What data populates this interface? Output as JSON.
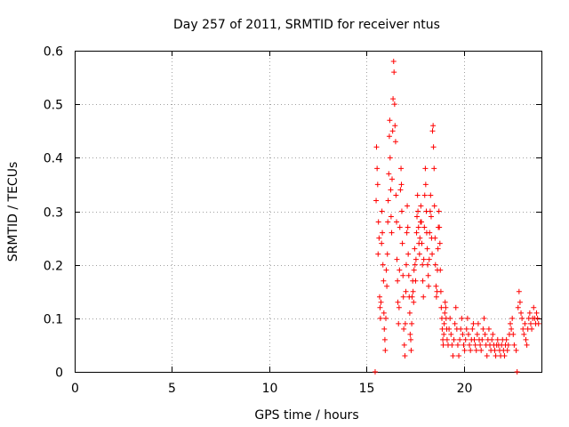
{
  "chart_data": {
    "type": "scatter",
    "title": "Day 257 of 2011, SRMTID for receiver ntus",
    "xlabel": "GPS time / hours",
    "ylabel": "SRMTID / TECUs",
    "xlim": [
      0,
      24
    ],
    "ylim": [
      0,
      0.6
    ],
    "xticks": [
      0,
      5,
      10,
      15,
      20
    ],
    "yticks": [
      0,
      0.1,
      0.2,
      0.3,
      0.4,
      0.5,
      0.6
    ],
    "xtick_labels": [
      "0",
      "5",
      "10",
      "15",
      "20"
    ],
    "ytick_labels": [
      "0",
      "0.1",
      "0.2",
      "0.3",
      "0.4",
      "0.5",
      "0.6"
    ],
    "grid": true,
    "marker": "+",
    "series": [
      {
        "name": "SRMTID",
        "color": "#ff0000",
        "points": [
          [
            15.45,
            0.0
          ],
          [
            15.5,
            0.32
          ],
          [
            15.52,
            0.42
          ],
          [
            15.55,
            0.38
          ],
          [
            15.58,
            0.35
          ],
          [
            15.6,
            0.22
          ],
          [
            15.62,
            0.28
          ],
          [
            15.65,
            0.25
          ],
          [
            15.68,
            0.14
          ],
          [
            15.7,
            0.12
          ],
          [
            15.72,
            0.1
          ],
          [
            15.75,
            0.13
          ],
          [
            15.78,
            0.24
          ],
          [
            15.8,
            0.3
          ],
          [
            15.82,
            0.26
          ],
          [
            15.85,
            0.2
          ],
          [
            15.88,
            0.17
          ],
          [
            15.9,
            0.11
          ],
          [
            15.92,
            0.08
          ],
          [
            15.95,
            0.06
          ],
          [
            15.97,
            0.04
          ],
          [
            16.0,
            0.1
          ],
          [
            16.02,
            0.19
          ],
          [
            16.05,
            0.16
          ],
          [
            16.08,
            0.22
          ],
          [
            16.1,
            0.28
          ],
          [
            16.12,
            0.32
          ],
          [
            16.15,
            0.37
          ],
          [
            16.18,
            0.44
          ],
          [
            16.2,
            0.47
          ],
          [
            16.22,
            0.4
          ],
          [
            16.25,
            0.34
          ],
          [
            16.27,
            0.29
          ],
          [
            16.3,
            0.26
          ],
          [
            16.32,
            0.36
          ],
          [
            16.35,
            0.45
          ],
          [
            16.37,
            0.51
          ],
          [
            16.4,
            0.58
          ],
          [
            16.42,
            0.56
          ],
          [
            16.45,
            0.5
          ],
          [
            16.47,
            0.46
          ],
          [
            16.5,
            0.43
          ],
          [
            16.52,
            0.33
          ],
          [
            16.55,
            0.28
          ],
          [
            16.57,
            0.21
          ],
          [
            16.6,
            0.17
          ],
          [
            16.62,
            0.13
          ],
          [
            16.65,
            0.09
          ],
          [
            16.68,
            0.12
          ],
          [
            16.7,
            0.19
          ],
          [
            16.72,
            0.27
          ],
          [
            16.75,
            0.34
          ],
          [
            16.78,
            0.38
          ],
          [
            16.8,
            0.35
          ],
          [
            16.82,
            0.3
          ],
          [
            16.85,
            0.24
          ],
          [
            16.88,
            0.18
          ],
          [
            16.9,
            0.14
          ],
          [
            16.92,
            0.08
          ],
          [
            16.95,
            0.05
          ],
          [
            16.98,
            0.03
          ],
          [
            17.0,
            0.09
          ],
          [
            17.03,
            0.15
          ],
          [
            17.05,
            0.2
          ],
          [
            17.08,
            0.26
          ],
          [
            17.1,
            0.31
          ],
          [
            17.13,
            0.27
          ],
          [
            17.15,
            0.22
          ],
          [
            17.18,
            0.18
          ],
          [
            17.2,
            0.14
          ],
          [
            17.23,
            0.11
          ],
          [
            17.25,
            0.07
          ],
          [
            17.28,
            0.06
          ],
          [
            17.3,
            0.04
          ],
          [
            17.33,
            0.09
          ],
          [
            17.35,
            0.14
          ],
          [
            17.38,
            0.17
          ],
          [
            17.4,
            0.15
          ],
          [
            17.43,
            0.13
          ],
          [
            17.45,
            0.19
          ],
          [
            17.48,
            0.23
          ],
          [
            17.5,
            0.2
          ],
          [
            17.53,
            0.17
          ],
          [
            17.55,
            0.21
          ],
          [
            17.58,
            0.26
          ],
          [
            17.6,
            0.29
          ],
          [
            17.63,
            0.33
          ],
          [
            17.65,
            0.3
          ],
          [
            17.68,
            0.27
          ],
          [
            17.7,
            0.24
          ],
          [
            17.73,
            0.22
          ],
          [
            17.75,
            0.25
          ],
          [
            17.78,
            0.28
          ],
          [
            17.8,
            0.31
          ],
          [
            17.83,
            0.28
          ],
          [
            17.85,
            0.24
          ],
          [
            17.88,
            0.2
          ],
          [
            17.9,
            0.17
          ],
          [
            17.93,
            0.14
          ],
          [
            17.95,
            0.21
          ],
          [
            17.98,
            0.27
          ],
          [
            18.0,
            0.33
          ],
          [
            18.03,
            0.38
          ],
          [
            18.05,
            0.35
          ],
          [
            18.08,
            0.3
          ],
          [
            18.1,
            0.26
          ],
          [
            18.13,
            0.23
          ],
          [
            18.15,
            0.2
          ],
          [
            18.18,
            0.18
          ],
          [
            18.2,
            0.16
          ],
          [
            18.23,
            0.21
          ],
          [
            18.25,
            0.26
          ],
          [
            18.28,
            0.3
          ],
          [
            18.3,
            0.33
          ],
          [
            18.33,
            0.29
          ],
          [
            18.35,
            0.25
          ],
          [
            18.38,
            0.22
          ],
          [
            18.4,
            0.45
          ],
          [
            18.43,
            0.46
          ],
          [
            18.45,
            0.42
          ],
          [
            18.48,
            0.38
          ],
          [
            18.5,
            0.31
          ],
          [
            18.53,
            0.25
          ],
          [
            18.55,
            0.2
          ],
          [
            18.58,
            0.16
          ],
          [
            18.6,
            0.14
          ],
          [
            18.63,
            0.15
          ],
          [
            18.65,
            0.19
          ],
          [
            18.68,
            0.23
          ],
          [
            18.7,
            0.27
          ],
          [
            18.73,
            0.3
          ],
          [
            18.75,
            0.27
          ],
          [
            18.78,
            0.24
          ],
          [
            18.8,
            0.19
          ],
          [
            18.83,
            0.15
          ],
          [
            18.85,
            0.12
          ],
          [
            18.88,
            0.1
          ],
          [
            18.9,
            0.08
          ],
          [
            18.93,
            0.06
          ],
          [
            18.95,
            0.05
          ],
          [
            18.98,
            0.07
          ],
          [
            19.0,
            0.09
          ],
          [
            19.03,
            0.11
          ],
          [
            19.05,
            0.13
          ],
          [
            19.08,
            0.12
          ],
          [
            19.1,
            0.1
          ],
          [
            19.13,
            0.08
          ],
          [
            19.15,
            0.06
          ],
          [
            19.2,
            0.05
          ],
          [
            19.25,
            0.08
          ],
          [
            19.3,
            0.1
          ],
          [
            19.35,
            0.07
          ],
          [
            19.4,
            0.05
          ],
          [
            19.45,
            0.03
          ],
          [
            19.5,
            0.06
          ],
          [
            19.55,
            0.09
          ],
          [
            19.6,
            0.12
          ],
          [
            19.65,
            0.08
          ],
          [
            19.7,
            0.05
          ],
          [
            19.75,
            0.03
          ],
          [
            19.8,
            0.06
          ],
          [
            19.85,
            0.08
          ],
          [
            19.9,
            0.1
          ],
          [
            19.95,
            0.07
          ],
          [
            20.0,
            0.05
          ],
          [
            20.05,
            0.04
          ],
          [
            20.1,
            0.06
          ],
          [
            20.15,
            0.08
          ],
          [
            20.2,
            0.1
          ],
          [
            20.25,
            0.07
          ],
          [
            20.3,
            0.05
          ],
          [
            20.35,
            0.04
          ],
          [
            20.4,
            0.06
          ],
          [
            20.45,
            0.08
          ],
          [
            20.5,
            0.09
          ],
          [
            20.55,
            0.06
          ],
          [
            20.6,
            0.05
          ],
          [
            20.65,
            0.04
          ],
          [
            20.7,
            0.07
          ],
          [
            20.75,
            0.09
          ],
          [
            20.8,
            0.06
          ],
          [
            20.85,
            0.05
          ],
          [
            20.9,
            0.04
          ],
          [
            20.95,
            0.06
          ],
          [
            21.0,
            0.08
          ],
          [
            21.05,
            0.1
          ],
          [
            21.1,
            0.07
          ],
          [
            21.15,
            0.05
          ],
          [
            21.2,
            0.03
          ],
          [
            21.25,
            0.06
          ],
          [
            21.3,
            0.08
          ],
          [
            21.35,
            0.05
          ],
          [
            21.4,
            0.04
          ],
          [
            21.45,
            0.06
          ],
          [
            21.5,
            0.07
          ],
          [
            21.55,
            0.05
          ],
          [
            21.6,
            0.04
          ],
          [
            21.65,
            0.03
          ],
          [
            21.7,
            0.05
          ],
          [
            21.75,
            0.06
          ],
          [
            21.8,
            0.05
          ],
          [
            21.85,
            0.04
          ],
          [
            21.9,
            0.03
          ],
          [
            21.95,
            0.05
          ],
          [
            22.0,
            0.06
          ],
          [
            22.05,
            0.04
          ],
          [
            22.1,
            0.03
          ],
          [
            22.15,
            0.05
          ],
          [
            22.2,
            0.06
          ],
          [
            22.25,
            0.04
          ],
          [
            22.3,
            0.05
          ],
          [
            22.35,
            0.07
          ],
          [
            22.4,
            0.09
          ],
          [
            22.45,
            0.08
          ],
          [
            22.5,
            0.1
          ],
          [
            22.55,
            0.07
          ],
          [
            22.6,
            0.05
          ],
          [
            22.7,
            0.04
          ],
          [
            22.75,
            0.0
          ],
          [
            22.8,
            0.12
          ],
          [
            22.85,
            0.15
          ],
          [
            22.9,
            0.13
          ],
          [
            22.95,
            0.11
          ],
          [
            23.0,
            0.1
          ],
          [
            23.05,
            0.08
          ],
          [
            23.1,
            0.07
          ],
          [
            23.15,
            0.09
          ],
          [
            23.2,
            0.06
          ],
          [
            23.25,
            0.05
          ],
          [
            23.3,
            0.08
          ],
          [
            23.35,
            0.1
          ],
          [
            23.4,
            0.11
          ],
          [
            23.45,
            0.09
          ],
          [
            23.5,
            0.08
          ],
          [
            23.55,
            0.1
          ],
          [
            23.6,
            0.12
          ],
          [
            23.65,
            0.1
          ],
          [
            23.7,
            0.09
          ],
          [
            23.75,
            0.11
          ],
          [
            23.8,
            0.1
          ],
          [
            23.85,
            0.09
          ]
        ]
      }
    ]
  }
}
